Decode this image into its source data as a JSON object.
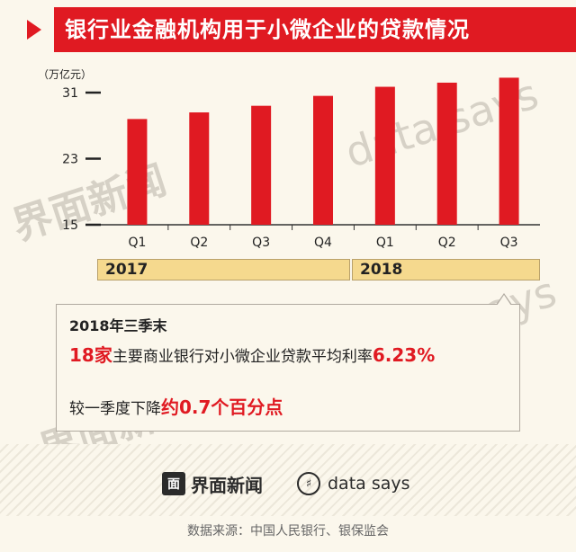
{
  "header": {
    "title": "银行业金融机构用于小微企业的贷款情况"
  },
  "chart_data": {
    "type": "bar",
    "unit": "（万亿元）",
    "categories": [
      "Q1",
      "Q2",
      "Q3",
      "Q4",
      "Q1",
      "Q2",
      "Q3"
    ],
    "groups": [
      {
        "label": "2017",
        "span": 4
      },
      {
        "label": "2018",
        "span": 3
      }
    ],
    "series": [
      {
        "values": [
          27.8,
          28.6,
          29.4,
          30.6,
          31.7,
          32.2,
          32.8
        ]
      }
    ],
    "yticks": [
      15,
      23,
      31
    ],
    "ylim": [
      15,
      33.5
    ],
    "bar_color": "#e01a22"
  },
  "callout": {
    "title": "2018年三季末",
    "line1_prefix": "18家",
    "line1_middle": "主要商业银行对小微企业贷款平均利率",
    "line1_value": "6.23%",
    "line2_prefix": "较一季度下降",
    "line2_value": "约0.7个百分点"
  },
  "watermarks": {
    "jiemian": "界面新闻",
    "datasays": "data says"
  },
  "footer": {
    "brand1_icon": "面",
    "brand1": "界面新闻",
    "brand2_icon": "♯",
    "brand2": "data says",
    "source": "数据来源：中国人民银行、银保监会"
  },
  "colors": {
    "accent": "#e01a22",
    "year_fill": "#f5d98e",
    "background": "#fbf7ec"
  }
}
